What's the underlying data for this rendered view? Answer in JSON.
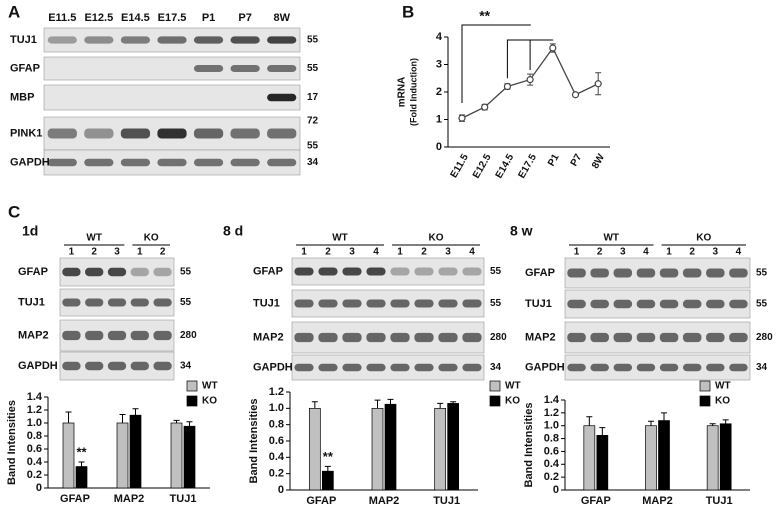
{
  "panel_labels": [
    "A",
    "B",
    "C"
  ],
  "blot_A": {
    "lanes": [
      "E11.5",
      "E12.5",
      "E14.5",
      "E17.5",
      "P1",
      "P7",
      "8W"
    ],
    "rows": [
      {
        "name": "TUJ1",
        "markers": [
          55
        ]
      },
      {
        "name": "GFAP",
        "markers": [
          55
        ]
      },
      {
        "name": "MBP",
        "markers": [
          17
        ]
      },
      {
        "name": "PINK1",
        "markers": [
          72,
          55
        ]
      },
      {
        "name": "GAPDH",
        "markers": [
          34
        ]
      }
    ]
  },
  "blots_C": [
    {
      "title": "1d",
      "groups": [
        "WT",
        "KO"
      ],
      "lanes": [
        [
          1,
          2,
          3
        ],
        [
          1,
          2
        ]
      ],
      "rows": [
        {
          "name": "GFAP",
          "marker": 55
        },
        {
          "name": "TUJ1",
          "marker": 55
        },
        {
          "name": "MAP2",
          "marker": 280
        },
        {
          "name": "GAPDH",
          "marker": 34
        }
      ]
    },
    {
      "title": "8 d",
      "groups": [
        "WT",
        "KO"
      ],
      "lanes": [
        [
          1,
          2,
          3,
          4
        ],
        [
          1,
          2,
          3,
          4
        ]
      ],
      "rows": [
        {
          "name": "GFAP",
          "marker": 55
        },
        {
          "name": "TUJ1",
          "marker": 55
        },
        {
          "name": "MAP2",
          "marker": 280
        },
        {
          "name": "GAPDH",
          "marker": 34
        }
      ]
    },
    {
      "title": "8 w",
      "groups": [
        "WT",
        "KO"
      ],
      "lanes": [
        [
          1,
          2,
          3,
          4
        ],
        [
          1,
          2,
          3,
          4
        ]
      ],
      "rows": [
        {
          "name": "GFAP",
          "marker": 55
        },
        {
          "name": "TUJ1",
          "marker": 55
        },
        {
          "name": "MAP2",
          "marker": 280
        },
        {
          "name": "GAPDH",
          "marker": 34
        }
      ]
    }
  ],
  "chart_data": [
    {
      "type": "line",
      "categories": [
        "E11.5",
        "E12.5",
        "E14.5",
        "E17.5",
        "P1",
        "P7",
        "8W"
      ],
      "values": [
        1.05,
        1.45,
        2.2,
        2.45,
        3.6,
        1.9,
        2.3
      ],
      "errors": [
        0.12,
        0.1,
        0.1,
        0.2,
        0.15,
        0.05,
        0.4
      ],
      "y_label": "mRNA",
      "y_label_sub": "(Fold Induction)",
      "ylim": [
        0,
        4
      ],
      "yticks": [
        0,
        1,
        2,
        3,
        4
      ],
      "annotation": "**",
      "color": "#444444"
    },
    {
      "type": "bar",
      "categories": [
        "GFAP",
        "MAP2",
        "TUJ1"
      ],
      "series": [
        {
          "name": "WT",
          "color": "#c0c0c0",
          "values": [
            1.0,
            1.0,
            1.0
          ],
          "errors": [
            0.17,
            0.13,
            0.04
          ]
        },
        {
          "name": "KO",
          "color": "#000000",
          "values": [
            0.33,
            1.12,
            0.95
          ],
          "errors": [
            0.07,
            0.1,
            0.07
          ]
        }
      ],
      "y_label": "Band Intensities",
      "ylim": [
        0,
        1.4
      ],
      "yticks": [
        0,
        0.2,
        0.4,
        0.6,
        0.8,
        {
          "value": 1,
          "label": "1.0"
        },
        1.2,
        1.4
      ],
      "annotation": "**",
      "legend": "upper right"
    },
    {
      "type": "bar",
      "categories": [
        "GFAP",
        "MAP2",
        "TUJ1"
      ],
      "series": [
        {
          "name": "WT",
          "color": "#c0c0c0",
          "values": [
            1.0,
            1.0,
            1.0
          ],
          "errors": [
            0.08,
            0.1,
            0.06
          ]
        },
        {
          "name": "KO",
          "color": "#000000",
          "values": [
            0.23,
            1.05,
            1.06
          ],
          "errors": [
            0.06,
            0.06,
            0.02
          ]
        }
      ],
      "y_label": "Band Intensities",
      "ylim": [
        0,
        1.2
      ],
      "yticks": [
        0,
        0.2,
        0.4,
        0.6,
        0.8,
        {
          "value": 1,
          "label": "1.0"
        },
        1.2
      ],
      "annotation": "**",
      "legend": "upper right"
    },
    {
      "type": "bar",
      "categories": [
        "GFAP",
        "MAP2",
        "TUJ1"
      ],
      "series": [
        {
          "name": "WT",
          "color": "#c0c0c0",
          "values": [
            1.0,
            1.0,
            1.0
          ],
          "errors": [
            0.14,
            0.07,
            0.03
          ]
        },
        {
          "name": "KO",
          "color": "#000000",
          "values": [
            0.85,
            1.08,
            1.03
          ],
          "errors": [
            0.12,
            0.12,
            0.06
          ]
        }
      ],
      "y_label": "Band Intensities",
      "ylim": [
        0,
        1.4
      ],
      "yticks": [
        0,
        0.2,
        0.4,
        0.6,
        0.8,
        {
          "value": 1,
          "label": "1.0"
        },
        1.2,
        1.4
      ],
      "legend": "upper right"
    }
  ]
}
